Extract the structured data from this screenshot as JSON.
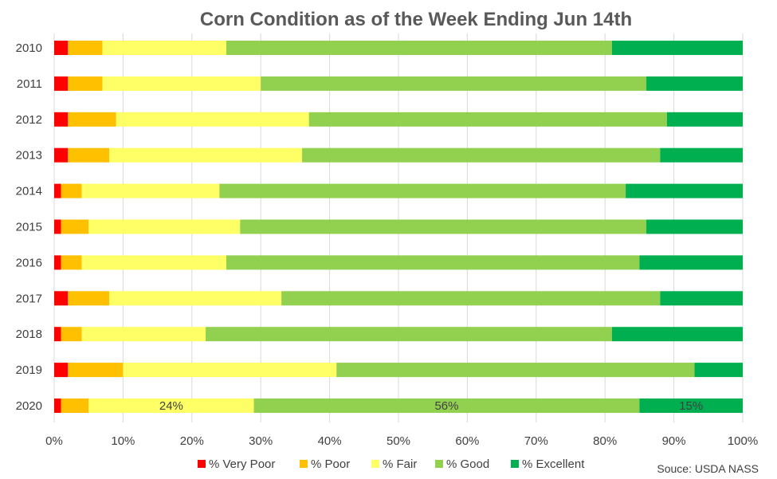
{
  "chart_data": {
    "type": "bar",
    "orientation": "horizontal",
    "stacked": true,
    "title": "Corn Condition as of the Week Ending Jun 14th",
    "source": "Souce: USDA NASS",
    "categories": [
      "2010",
      "2011",
      "2012",
      "2013",
      "2014",
      "2015",
      "2016",
      "2017",
      "2018",
      "2019",
      "2020"
    ],
    "xlim": [
      0,
      100
    ],
    "x_ticks": [
      "0%",
      "10%",
      "20%",
      "30%",
      "40%",
      "50%",
      "60%",
      "70%",
      "80%",
      "90%",
      "100%"
    ],
    "grid": "vertical",
    "legend_position": "bottom",
    "series": [
      {
        "name": "% Very Poor",
        "color": "#ff0000",
        "values": [
          2,
          2,
          2,
          2,
          1,
          1,
          1,
          2,
          1,
          2,
          1
        ]
      },
      {
        "name": "% Poor",
        "color": "#ffc000",
        "values": [
          5,
          5,
          7,
          6,
          3,
          4,
          3,
          6,
          3,
          8,
          4
        ]
      },
      {
        "name": "% Fair",
        "color": "#ffff66",
        "values": [
          18,
          23,
          28,
          28,
          20,
          22,
          21,
          25,
          18,
          31,
          24
        ]
      },
      {
        "name": "% Good",
        "color": "#92d050",
        "values": [
          56,
          56,
          52,
          52,
          59,
          59,
          60,
          55,
          59,
          52,
          56
        ]
      },
      {
        "name": "% Excellent",
        "color": "#00b050",
        "values": [
          19,
          14,
          11,
          12,
          17,
          14,
          15,
          12,
          19,
          7,
          15
        ]
      }
    ],
    "data_labels": [
      {
        "category": "2020",
        "series": "% Fair",
        "text": "24%"
      },
      {
        "category": "2020",
        "series": "% Good",
        "text": "56%"
      },
      {
        "category": "2020",
        "series": "% Excellent",
        "text": "15%"
      }
    ]
  }
}
